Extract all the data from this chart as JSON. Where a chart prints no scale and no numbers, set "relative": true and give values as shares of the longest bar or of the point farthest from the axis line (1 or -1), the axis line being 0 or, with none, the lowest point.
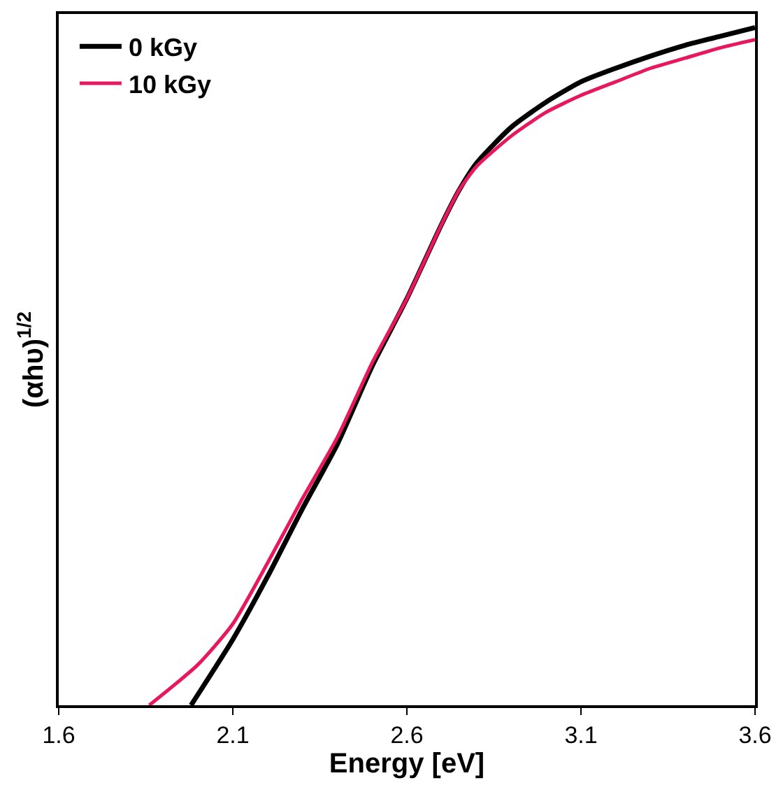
{
  "chart_data": {
    "type": "line",
    "xlabel": "Energy [eV]",
    "ylabel": "(αhυ)$^{1/2}$",
    "relative": true,
    "xlim": [
      1.6,
      3.6
    ],
    "xticks": [
      1.6,
      2.1,
      2.6,
      3.1,
      3.6
    ],
    "legend": "top left",
    "tick_labels": "x",
    "series": [
      {
        "name": "0 kGy",
        "color": "#000000",
        "x": [
          1.98,
          2.1,
          2.2,
          2.3,
          2.4,
          2.5,
          2.6,
          2.7,
          2.75,
          2.8,
          2.9,
          3.0,
          3.1,
          3.2,
          3.3,
          3.4,
          3.5,
          3.6
        ],
        "values": [
          0,
          0.097,
          0.19,
          0.29,
          0.385,
          0.5,
          0.6,
          0.71,
          0.76,
          0.8,
          0.853,
          0.89,
          0.92,
          0.94,
          0.958,
          0.974,
          0.987,
          1
        ]
      },
      {
        "name": "10 kGy",
        "color": "#e8185f",
        "x": [
          1.86,
          2.0,
          2.1,
          2.2,
          2.3,
          2.4,
          2.5,
          2.6,
          2.7,
          2.75,
          2.8,
          2.9,
          3.0,
          3.1,
          3.2,
          3.3,
          3.4,
          3.5,
          3.6
        ],
        "values": [
          0,
          0.06,
          0.12,
          0.21,
          0.305,
          0.395,
          0.505,
          0.6,
          0.71,
          0.76,
          0.795,
          0.84,
          0.875,
          0.9,
          0.92,
          0.94,
          0.955,
          0.97,
          0.982
        ]
      }
    ]
  }
}
